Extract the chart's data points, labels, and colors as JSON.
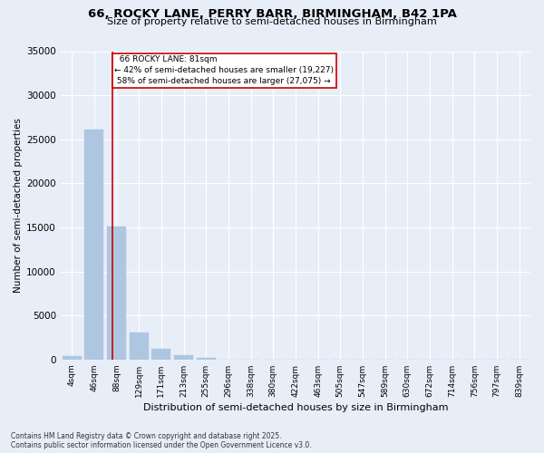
{
  "title_line1": "66, ROCKY LANE, PERRY BARR, BIRMINGHAM, B42 1PA",
  "title_line2": "Size of property relative to semi-detached houses in Birmingham",
  "xlabel": "Distribution of semi-detached houses by size in Birmingham",
  "ylabel": "Number of semi-detached properties",
  "categories": [
    "4sqm",
    "46sqm",
    "88sqm",
    "129sqm",
    "171sqm",
    "213sqm",
    "255sqm",
    "296sqm",
    "338sqm",
    "380sqm",
    "422sqm",
    "463sqm",
    "505sqm",
    "547sqm",
    "589sqm",
    "630sqm",
    "672sqm",
    "714sqm",
    "756sqm",
    "797sqm",
    "839sqm"
  ],
  "values": [
    350,
    26100,
    15100,
    3100,
    1200,
    450,
    150,
    0,
    0,
    0,
    0,
    0,
    0,
    0,
    0,
    0,
    0,
    0,
    0,
    0,
    0
  ],
  "ylim": [
    0,
    35000
  ],
  "yticks": [
    0,
    5000,
    10000,
    15000,
    20000,
    25000,
    30000,
    35000
  ],
  "property_label": "66 ROCKY LANE: 81sqm",
  "pct_smaller": 42,
  "pct_larger": 58,
  "count_smaller": 19227,
  "count_larger": 27075,
  "vline_x_index": 1.83,
  "bar_color": "#aec6e0",
  "vline_color": "#cc0000",
  "background_color": "#e8eef8",
  "grid_color": "#ffffff",
  "annotation_box_color": "#cc0000",
  "footer_line1": "Contains HM Land Registry data © Crown copyright and database right 2025.",
  "footer_line2": "Contains public sector information licensed under the Open Government Licence v3.0."
}
